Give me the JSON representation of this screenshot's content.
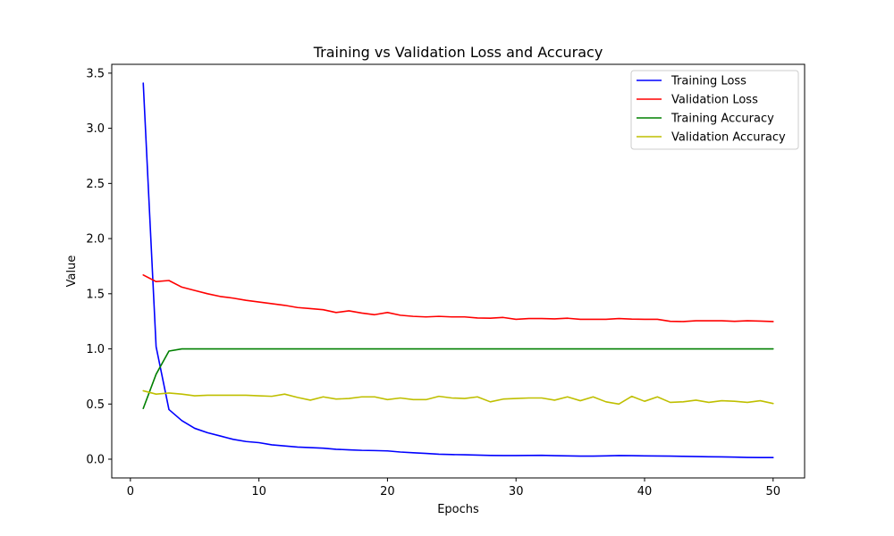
{
  "chart_data": {
    "type": "line",
    "title": "Training vs Validation Loss and Accuracy",
    "xlabel": "Epochs",
    "ylabel": "Value",
    "xlim": [
      -1.45,
      52.45
    ],
    "ylim": [
      -0.17,
      3.58
    ],
    "xticks": [
      0,
      10,
      20,
      30,
      40,
      50
    ],
    "yticks": [
      0.0,
      0.5,
      1.0,
      1.5,
      2.0,
      2.5,
      3.0,
      3.5
    ],
    "ytick_labels": [
      "0.0",
      "0.5",
      "1.0",
      "1.5",
      "2.0",
      "2.5",
      "3.0",
      "3.5"
    ],
    "grid": false,
    "legend_position": "top-right",
    "x": [
      1,
      2,
      3,
      4,
      5,
      6,
      7,
      8,
      9,
      10,
      11,
      12,
      13,
      14,
      15,
      16,
      17,
      18,
      19,
      20,
      21,
      22,
      23,
      24,
      25,
      26,
      27,
      28,
      29,
      30,
      31,
      32,
      33,
      34,
      35,
      36,
      37,
      38,
      39,
      40,
      41,
      42,
      43,
      44,
      45,
      46,
      47,
      48,
      49,
      50
    ],
    "series": [
      {
        "name": "Training Loss",
        "color": "#0000ff",
        "values": [
          3.41,
          1.02,
          0.45,
          0.35,
          0.28,
          0.24,
          0.21,
          0.18,
          0.16,
          0.15,
          0.13,
          0.12,
          0.11,
          0.105,
          0.1,
          0.09,
          0.085,
          0.08,
          0.078,
          0.075,
          0.065,
          0.058,
          0.052,
          0.045,
          0.042,
          0.04,
          0.037,
          0.034,
          0.033,
          0.033,
          0.034,
          0.035,
          0.032,
          0.03,
          0.028,
          0.028,
          0.03,
          0.033,
          0.032,
          0.03,
          0.029,
          0.028,
          0.026,
          0.024,
          0.022,
          0.021,
          0.019,
          0.016,
          0.015,
          0.015
        ]
      },
      {
        "name": "Validation Loss",
        "color": "#ff0000",
        "values": [
          1.67,
          1.61,
          1.62,
          1.56,
          1.53,
          1.5,
          1.475,
          1.46,
          1.44,
          1.425,
          1.41,
          1.395,
          1.375,
          1.365,
          1.355,
          1.33,
          1.345,
          1.325,
          1.31,
          1.33,
          1.305,
          1.295,
          1.29,
          1.295,
          1.29,
          1.29,
          1.28,
          1.278,
          1.285,
          1.268,
          1.275,
          1.275,
          1.272,
          1.278,
          1.268,
          1.268,
          1.268,
          1.275,
          1.27,
          1.268,
          1.268,
          1.25,
          1.248,
          1.255,
          1.255,
          1.255,
          1.25,
          1.255,
          1.252,
          1.248
        ]
      },
      {
        "name": "Training Accuracy",
        "color": "#008000",
        "values": [
          0.46,
          0.77,
          0.98,
          1.0,
          1.0,
          1.0,
          1.0,
          1.0,
          1.0,
          1.0,
          1.0,
          1.0,
          1.0,
          1.0,
          1.0,
          1.0,
          1.0,
          1.0,
          1.0,
          1.0,
          1.0,
          1.0,
          1.0,
          1.0,
          1.0,
          1.0,
          1.0,
          1.0,
          1.0,
          1.0,
          1.0,
          1.0,
          1.0,
          1.0,
          1.0,
          1.0,
          1.0,
          1.0,
          1.0,
          1.0,
          1.0,
          1.0,
          1.0,
          1.0,
          1.0,
          1.0,
          1.0,
          1.0,
          1.0,
          1.0
        ]
      },
      {
        "name": "Validation Accuracy",
        "color": "#bfbf00",
        "values": [
          0.62,
          0.59,
          0.6,
          0.59,
          0.575,
          0.58,
          0.58,
          0.58,
          0.58,
          0.575,
          0.57,
          0.59,
          0.56,
          0.535,
          0.565,
          0.545,
          0.55,
          0.565,
          0.565,
          0.54,
          0.555,
          0.54,
          0.54,
          0.57,
          0.555,
          0.55,
          0.565,
          0.52,
          0.545,
          0.55,
          0.555,
          0.555,
          0.535,
          0.565,
          0.53,
          0.565,
          0.52,
          0.5,
          0.57,
          0.525,
          0.565,
          0.515,
          0.52,
          0.535,
          0.515,
          0.53,
          0.525,
          0.515,
          0.53,
          0.505
        ]
      }
    ]
  }
}
